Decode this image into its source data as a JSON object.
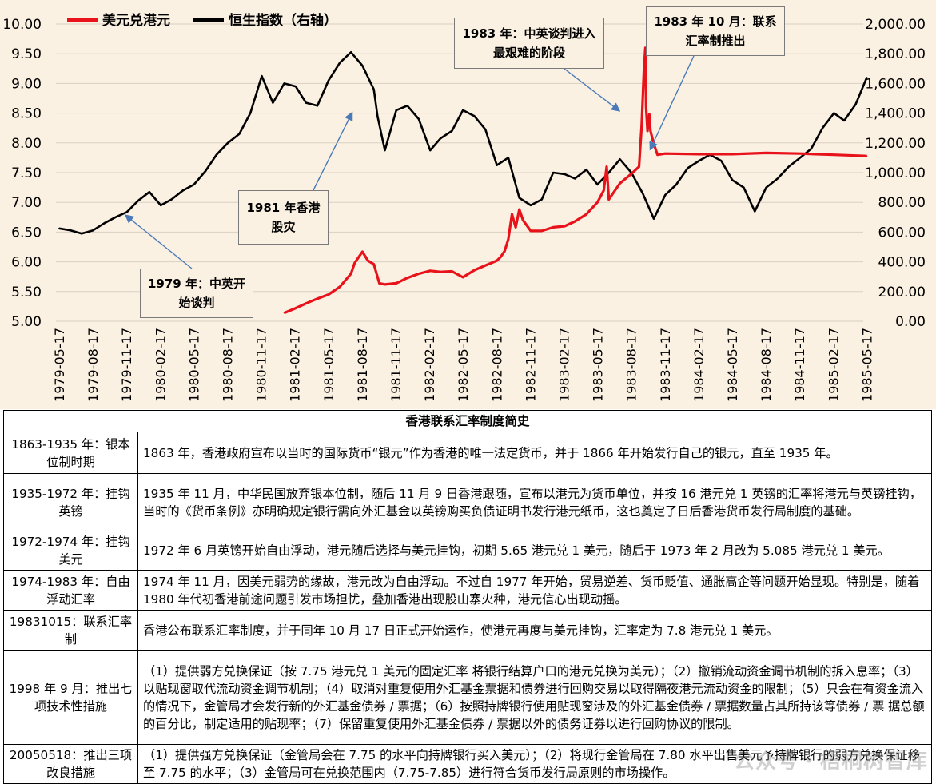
{
  "chart_data": {
    "type": "line",
    "legend_position": "top-left",
    "grid": true,
    "left_axis": {
      "ylim": [
        5.0,
        10.0
      ],
      "ticks": [
        "5.00",
        "5.50",
        "6.00",
        "6.50",
        "7.00",
        "7.50",
        "8.00",
        "8.50",
        "9.00",
        "9.50",
        "10.00"
      ]
    },
    "right_axis": {
      "ylim": [
        0,
        2000
      ],
      "ticks": [
        "0.00",
        "200.00",
        "400.00",
        "600.00",
        "800.00",
        "1,000.00",
        "1,200.00",
        "1,400.00",
        "1,600.00",
        "1,800.00",
        "2,000.00"
      ]
    },
    "x_ticks": [
      "1979-05-17",
      "1979-08-17",
      "1979-11-17",
      "1980-02-17",
      "1980-05-17",
      "1980-08-17",
      "1980-11-17",
      "1981-02-17",
      "1981-05-17",
      "1981-08-17",
      "1981-11-17",
      "1982-02-17",
      "1982-05-17",
      "1982-08-17",
      "1982-11-17",
      "1983-02-17",
      "1983-05-17",
      "1983-08-17",
      "1983-11-17",
      "1984-02-17",
      "1984-05-17",
      "1984-08-17",
      "1984-11-17",
      "1985-02-17",
      "1985-05-17"
    ],
    "series": [
      {
        "name": "美元兑港元",
        "axis": "left",
        "color": "#e8121a",
        "points": [
          [
            "1981-01-17",
            5.14
          ],
          [
            "1981-02-17",
            5.22
          ],
          [
            "1981-03-17",
            5.3
          ],
          [
            "1981-04-17",
            5.38
          ],
          [
            "1981-05-17",
            5.45
          ],
          [
            "1981-06-17",
            5.58
          ],
          [
            "1981-07-17",
            5.8
          ],
          [
            "1981-07-27",
            5.98
          ],
          [
            "1981-08-07",
            6.08
          ],
          [
            "1981-08-17",
            6.17
          ],
          [
            "1981-09-01",
            6.02
          ],
          [
            "1981-09-17",
            5.96
          ],
          [
            "1981-10-02",
            5.64
          ],
          [
            "1981-10-17",
            5.62
          ],
          [
            "1981-11-17",
            5.64
          ],
          [
            "1981-12-17",
            5.73
          ],
          [
            "1982-01-17",
            5.8
          ],
          [
            "1982-02-17",
            5.85
          ],
          [
            "1982-03-17",
            5.83
          ],
          [
            "1982-04-17",
            5.84
          ],
          [
            "1982-05-17",
            5.74
          ],
          [
            "1982-06-17",
            5.86
          ],
          [
            "1982-07-17",
            5.94
          ],
          [
            "1982-08-17",
            6.02
          ],
          [
            "1982-08-27",
            6.08
          ],
          [
            "1982-09-07",
            6.18
          ],
          [
            "1982-09-17",
            6.38
          ],
          [
            "1982-09-27",
            6.8
          ],
          [
            "1982-10-07",
            6.58
          ],
          [
            "1982-10-17",
            6.88
          ],
          [
            "1982-10-27",
            6.7
          ],
          [
            "1982-11-17",
            6.52
          ],
          [
            "1982-12-17",
            6.52
          ],
          [
            "1983-01-17",
            6.58
          ],
          [
            "1983-02-17",
            6.6
          ],
          [
            "1983-03-17",
            6.68
          ],
          [
            "1983-04-17",
            6.8
          ],
          [
            "1983-05-17",
            7.0
          ],
          [
            "1983-06-03",
            7.2
          ],
          [
            "1983-06-11",
            7.6
          ],
          [
            "1983-06-17",
            7.05
          ],
          [
            "1983-07-17",
            7.32
          ],
          [
            "1983-08-17",
            7.48
          ],
          [
            "1983-09-07",
            7.6
          ],
          [
            "1983-09-14",
            8.3
          ],
          [
            "1983-09-20",
            9.2
          ],
          [
            "1983-09-24",
            9.6
          ],
          [
            "1983-09-26",
            8.6
          ],
          [
            "1983-09-30",
            8.2
          ],
          [
            "1983-10-05",
            8.48
          ],
          [
            "1983-10-08",
            8.2
          ],
          [
            "1983-10-17",
            7.98
          ],
          [
            "1983-10-27",
            7.8
          ],
          [
            "1983-11-17",
            7.82
          ],
          [
            "1984-02-17",
            7.81
          ],
          [
            "1984-05-17",
            7.81
          ],
          [
            "1984-08-17",
            7.83
          ],
          [
            "1984-11-17",
            7.82
          ],
          [
            "1985-02-17",
            7.8
          ],
          [
            "1985-05-17",
            7.78
          ]
        ]
      },
      {
        "name": "恒生指数（右轴）",
        "axis": "right",
        "color": "#000000",
        "points": [
          [
            "1979-05-17",
            625
          ],
          [
            "1979-06-17",
            612
          ],
          [
            "1979-07-17",
            590
          ],
          [
            "1979-08-17",
            612
          ],
          [
            "1979-09-17",
            660
          ],
          [
            "1979-10-17",
            700
          ],
          [
            "1979-11-17",
            735
          ],
          [
            "1979-12-17",
            810
          ],
          [
            "1980-01-17",
            870
          ],
          [
            "1980-02-17",
            780
          ],
          [
            "1980-03-17",
            820
          ],
          [
            "1980-04-17",
            880
          ],
          [
            "1980-05-17",
            920
          ],
          [
            "1980-06-17",
            1010
          ],
          [
            "1980-07-17",
            1120
          ],
          [
            "1980-08-17",
            1200
          ],
          [
            "1980-09-17",
            1260
          ],
          [
            "1980-10-17",
            1400
          ],
          [
            "1980-11-17",
            1650
          ],
          [
            "1980-12-17",
            1470
          ],
          [
            "1981-01-17",
            1600
          ],
          [
            "1981-02-17",
            1580
          ],
          [
            "1981-03-17",
            1470
          ],
          [
            "1981-04-17",
            1450
          ],
          [
            "1981-05-17",
            1620
          ],
          [
            "1981-06-17",
            1740
          ],
          [
            "1981-07-17",
            1810
          ],
          [
            "1981-08-17",
            1720
          ],
          [
            "1981-09-17",
            1560
          ],
          [
            "1981-09-27",
            1380
          ],
          [
            "1981-10-17",
            1150
          ],
          [
            "1981-11-17",
            1420
          ],
          [
            "1981-12-17",
            1450
          ],
          [
            "1982-01-17",
            1360
          ],
          [
            "1982-02-17",
            1150
          ],
          [
            "1982-03-17",
            1230
          ],
          [
            "1982-04-17",
            1280
          ],
          [
            "1982-05-17",
            1420
          ],
          [
            "1982-06-17",
            1380
          ],
          [
            "1982-07-17",
            1290
          ],
          [
            "1982-08-17",
            1050
          ],
          [
            "1982-09-17",
            1100
          ],
          [
            "1982-10-17",
            830
          ],
          [
            "1982-11-17",
            780
          ],
          [
            "1982-12-17",
            820
          ],
          [
            "1983-01-17",
            1000
          ],
          [
            "1983-02-17",
            990
          ],
          [
            "1983-03-17",
            960
          ],
          [
            "1983-04-17",
            1020
          ],
          [
            "1983-05-17",
            920
          ],
          [
            "1983-06-17",
            1000
          ],
          [
            "1983-07-17",
            1090
          ],
          [
            "1983-08-17",
            1000
          ],
          [
            "1983-09-17",
            860
          ],
          [
            "1983-10-17",
            690
          ],
          [
            "1983-11-17",
            850
          ],
          [
            "1983-12-17",
            920
          ],
          [
            "1984-01-17",
            1030
          ],
          [
            "1984-02-17",
            1080
          ],
          [
            "1984-03-17",
            1120
          ],
          [
            "1984-04-17",
            1080
          ],
          [
            "1984-05-17",
            950
          ],
          [
            "1984-06-17",
            900
          ],
          [
            "1984-07-17",
            740
          ],
          [
            "1984-08-17",
            900
          ],
          [
            "1984-09-17",
            960
          ],
          [
            "1984-10-17",
            1040
          ],
          [
            "1984-11-17",
            1100
          ],
          [
            "1984-12-17",
            1160
          ],
          [
            "1985-01-17",
            1300
          ],
          [
            "1985-02-17",
            1400
          ],
          [
            "1985-03-17",
            1350
          ],
          [
            "1985-04-17",
            1460
          ],
          [
            "1985-05-17",
            1640
          ]
        ]
      }
    ]
  },
  "annotations": {
    "a1979": "1979 年：中英开始谈判",
    "a1981": "1981 年香港股灾",
    "a1983a": "1983 年：中英谈判进入最艰难的阶段",
    "a1983b": "1983 年 10 月：联系汇率制推出"
  },
  "table": {
    "title": "香港联系汇率制度简史",
    "rows": [
      {
        "period": "1863-1935 年：银本位制时期",
        "desc": "1863 年，香港政府宣布以当时的国际货币“银元”作为香港的唯一法定货币，并于 1866 年开始发行自己的银元，直至 1935 年。"
      },
      {
        "period": "1935-1972 年：挂钩英镑",
        "desc": "1935 年 11 月，中华民国放弃银本位制，随后 11 月 9 日香港跟随，宣布以港元为货币单位，并按 16 港元兑 1 英镑的汇率将港元与英镑挂钩，当时的《货币条例》亦明确规定银行需向外汇基金以英镑购买负债证明书发行港元纸币，这也奠定了日后香港货币发行局制度的基础。"
      },
      {
        "period": "1972-1974 年：挂钩美元",
        "desc": "1972 年 6 月英镑开始自由浮动，港元随后选择与美元挂钩，初期 5.65 港元兑 1 美元，随后于 1973 年 2 月改为 5.085 港元兑 1 美元。"
      },
      {
        "period": "1974-1983 年：自由浮动汇率",
        "desc": "1974 年 11 月，因美元弱势的缘故，港元改为自由浮动。不过自 1977 年开始，贸易逆差、货币贬值、通胀高企等问题开始显现。特别是，随着 1980 年代初香港前途问题引发市场担忧，叠加香港出现股山寨火种，港元信心出现动摇。"
      },
      {
        "period": "19831015：联系汇率制",
        "desc": "香港公布联系汇率制度，并于同年 10 月 17 日正式开始运作，使港元再度与美元挂钩，汇率定为 7.8 港元兑 1 美元。"
      },
      {
        "period": "1998 年 9 月：推出七项技术性措施",
        "desc": "（1）提供弱方兑换保证（按 7.75 港元兑 1 美元的固定汇率 将银行结算户口的港元兑换为美元）；（2）撤销流动资金调节机制的拆入息率；（3）以贴现窗取代流动资金调节机制；（4）取消对重复使用外汇基金票据和债券进行回购交易以取得隔夜港元流动资金的限制；（5）只会在有资金流入的情况下，金管局才会发行新的外汇基金债券 / 票据；（6）按照持牌银行使用贴现窗涉及的外汇基金债券 / 票据数量占其所持该等债券 / 票 据总额的百分比，制定适用的贴现率；（7）保留重复使用外汇基金债券 / 票据以外的债务证券以进行回购协议的限制。"
      },
      {
        "period": "20050518：推出三项改良措施",
        "desc": "（1）提供强方兑换保证（金管局会在 7.75 的水平向持牌银行买入美元）；（2）将现行金管局在 7.80 水平出售美元予持牌银行的弱方兑换保证移至 7.75 的水平；（3）金管局可在兑换范围内（7.75-7.85）进行符合货币发行局原则的市场操作。"
      }
    ]
  },
  "watermark": "公众号・梧桐树智库"
}
